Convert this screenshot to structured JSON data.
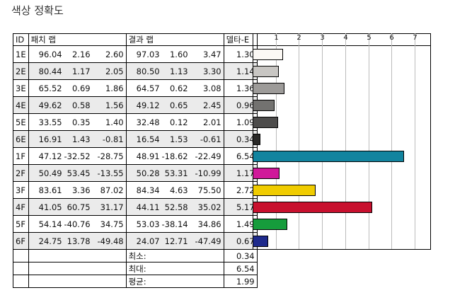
{
  "title": "색상 정확도",
  "headers": {
    "id": "ID",
    "patch": "패치 랩",
    "result": "결과 랩",
    "delta": "델타-E"
  },
  "scale": {
    "max": 7.7,
    "ticks": [
      "1",
      "2",
      "3",
      "4",
      "5",
      "6",
      "7"
    ]
  },
  "rows": [
    {
      "id": "1E",
      "p": [
        "96.04",
        "2.16",
        "2.60"
      ],
      "r": [
        "97.03",
        "1.60",
        "3.47"
      ],
      "de": "1.30",
      "color": "#fbf8f4"
    },
    {
      "id": "2E",
      "p": [
        "80.44",
        "1.17",
        "2.05"
      ],
      "r": [
        "80.50",
        "1.13",
        "3.30"
      ],
      "de": "1.14",
      "color": "#c8c6c3"
    },
    {
      "id": "3E",
      "p": [
        "65.52",
        "0.69",
        "1.86"
      ],
      "r": [
        "64.57",
        "0.62",
        "3.08"
      ],
      "de": "1.36",
      "color": "#9d9b99"
    },
    {
      "id": "4E",
      "p": [
        "49.62",
        "0.58",
        "1.56"
      ],
      "r": [
        "49.12",
        "0.65",
        "2.45"
      ],
      "de": "0.96",
      "color": "#737270"
    },
    {
      "id": "5E",
      "p": [
        "33.55",
        "0.35",
        "1.40"
      ],
      "r": [
        "32.48",
        "0.12",
        "2.01"
      ],
      "de": "1.09",
      "color": "#4d4c4b"
    },
    {
      "id": "6E",
      "p": [
        "16.91",
        "1.43",
        "-0.81"
      ],
      "r": [
        "16.54",
        "1.53",
        "-0.61"
      ],
      "de": "0.34",
      "color": "#2a2928"
    },
    {
      "id": "1F",
      "p": [
        "47.12",
        "-32.52",
        "-28.75"
      ],
      "r": [
        "48.91",
        "-18.62",
        "-22.49"
      ],
      "de": "6.54",
      "color": "#12849f"
    },
    {
      "id": "2F",
      "p": [
        "50.49",
        "53.45",
        "-13.55"
      ],
      "r": [
        "50.28",
        "53.31",
        "-10.99"
      ],
      "de": "1.17",
      "color": "#d0199a"
    },
    {
      "id": "3F",
      "p": [
        "83.61",
        "3.36",
        "87.02"
      ],
      "r": [
        "84.34",
        "4.63",
        "75.50"
      ],
      "de": "2.72",
      "color": "#f0cc00"
    },
    {
      "id": "4F",
      "p": [
        "41.05",
        "60.75",
        "31.17"
      ],
      "r": [
        "44.11",
        "52.58",
        "35.02"
      ],
      "de": "5.17",
      "color": "#c8102e"
    },
    {
      "id": "5F",
      "p": [
        "54.14",
        "-40.76",
        "34.75"
      ],
      "r": [
        "53.03",
        "-38.14",
        "34.86"
      ],
      "de": "1.49",
      "color": "#169c3c"
    },
    {
      "id": "6F",
      "p": [
        "24.75",
        "13.78",
        "-49.48"
      ],
      "r": [
        "24.07",
        "12.71",
        "-47.49"
      ],
      "de": "0.67",
      "color": "#1e2a8c"
    }
  ],
  "stats": [
    {
      "label": "최소:",
      "value": "0.34"
    },
    {
      "label": "최대:",
      "value": "6.54"
    },
    {
      "label": "평균:",
      "value": "1.99"
    }
  ]
}
